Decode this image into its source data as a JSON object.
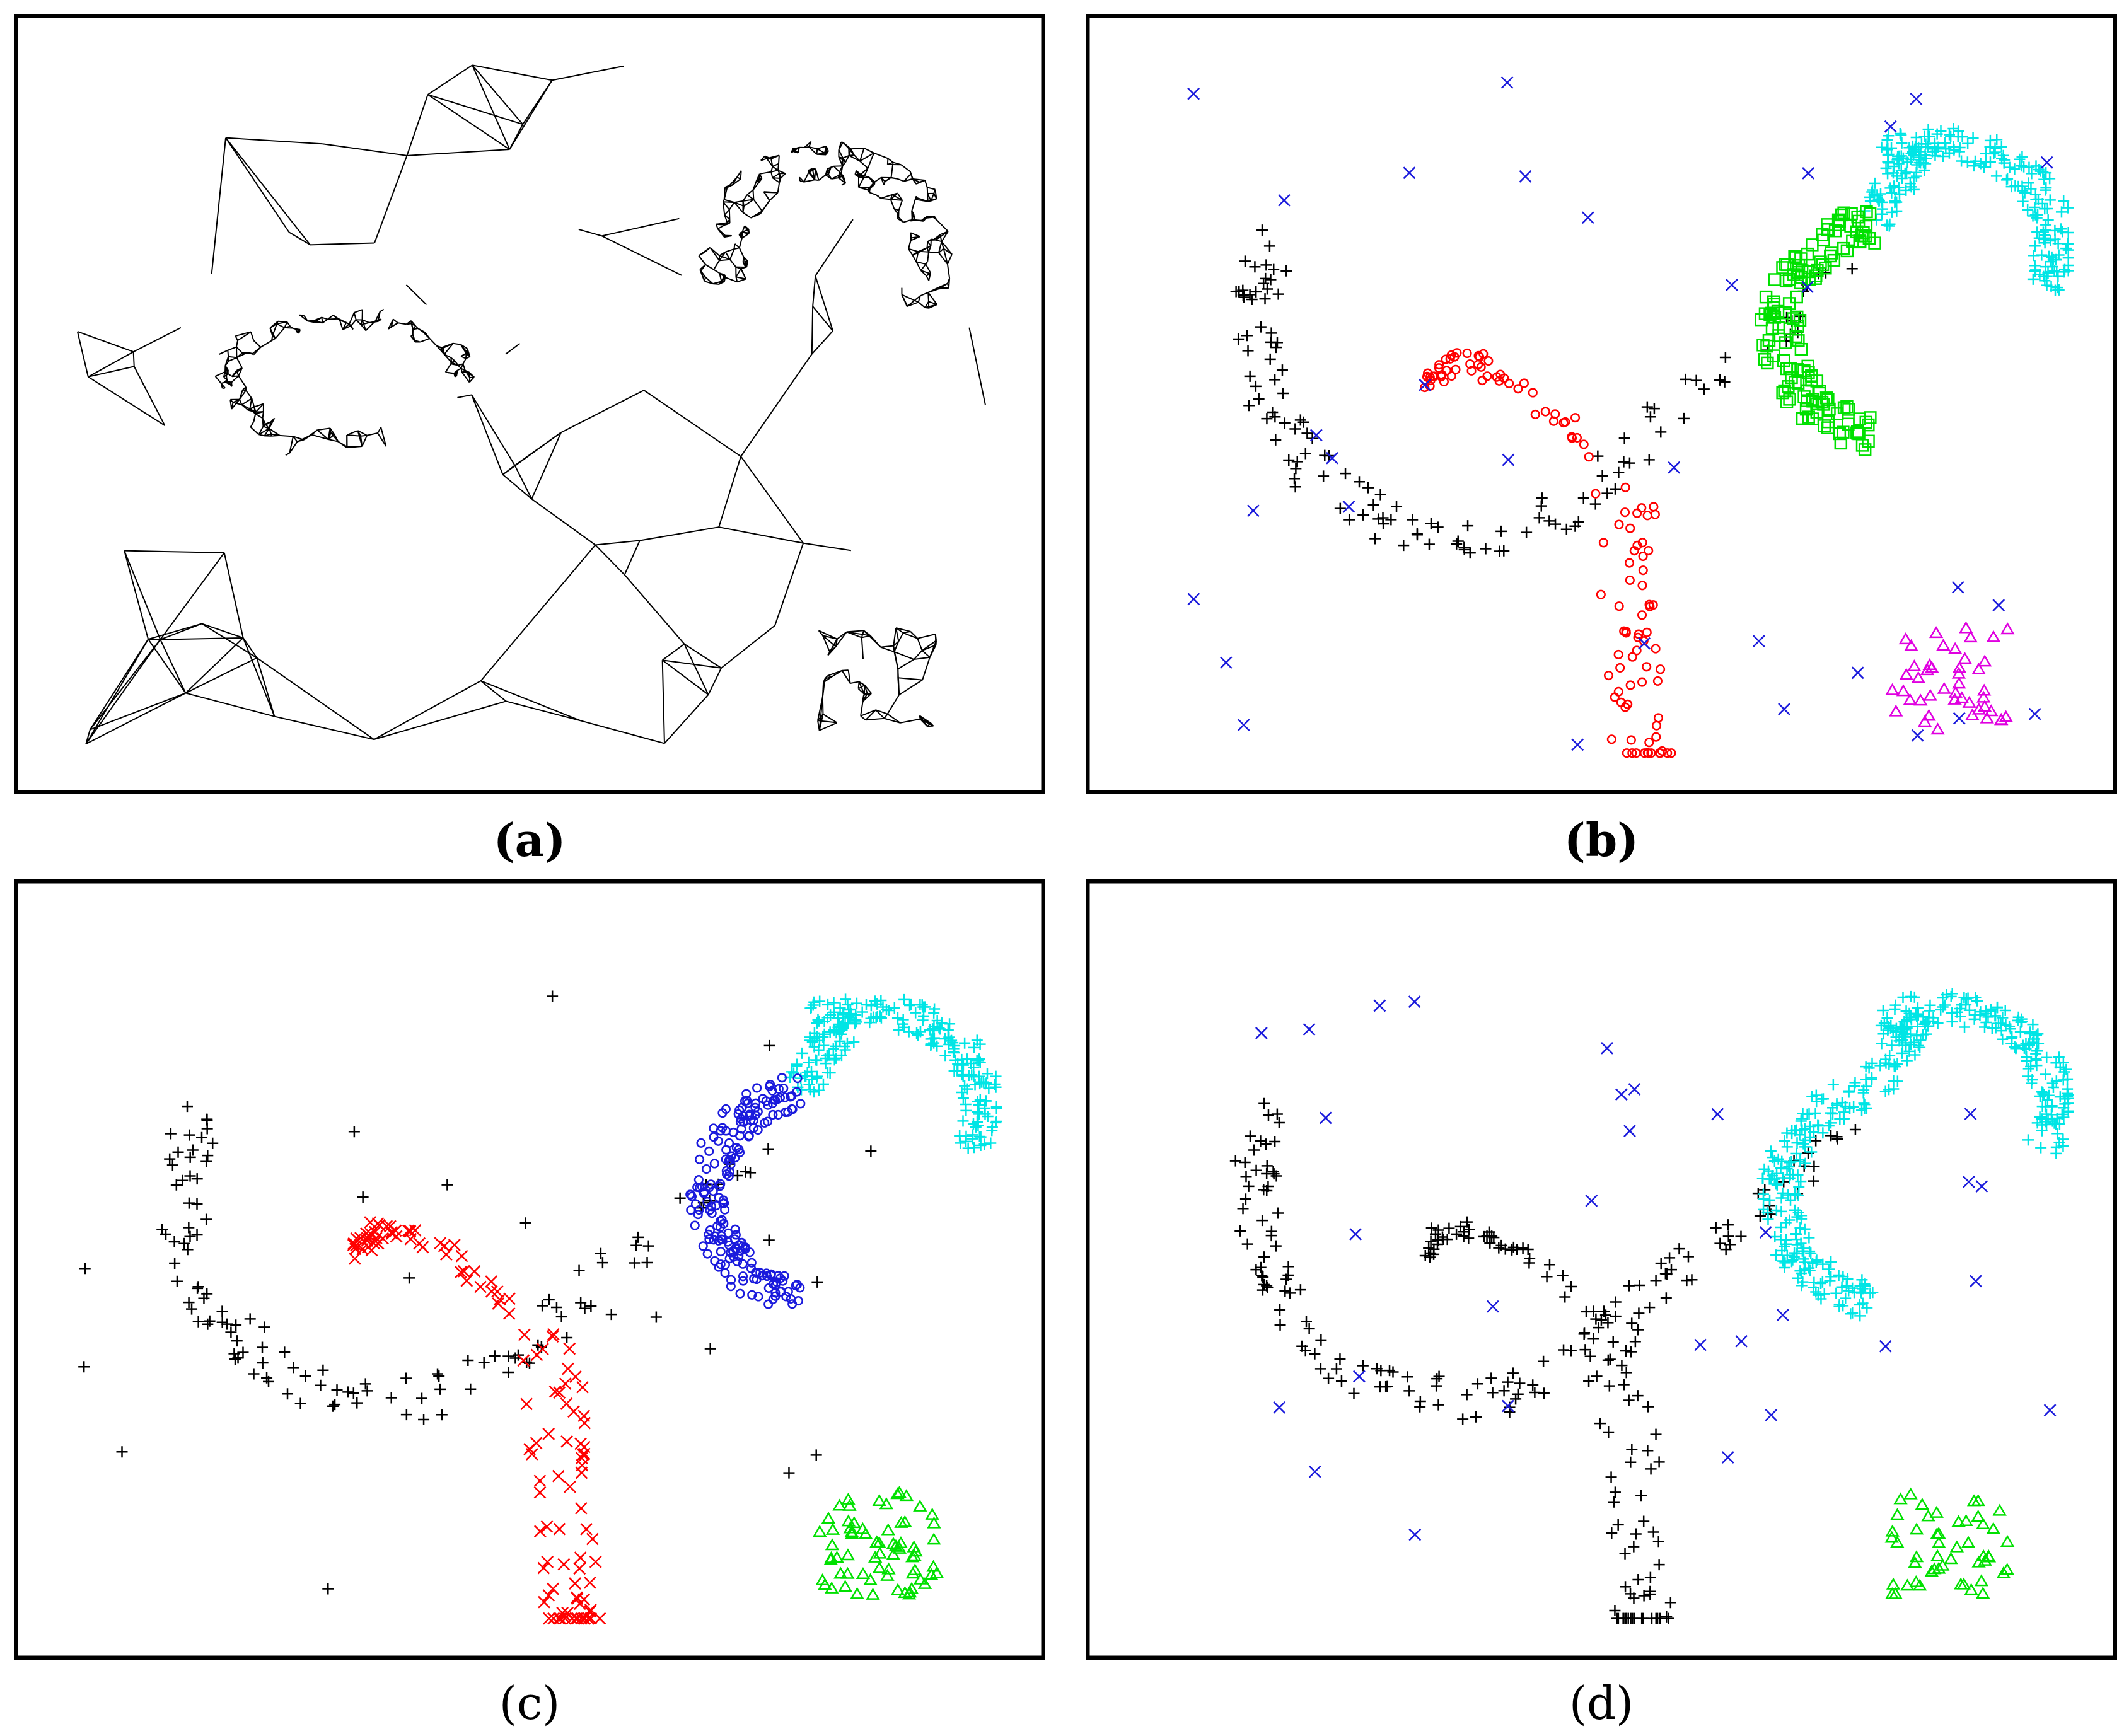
{
  "captions": {
    "a": "(a)",
    "b": "(b)",
    "c": "(c)",
    "d": "(d)"
  },
  "colors": {
    "black": "#000000",
    "red": "#ff0000",
    "green": "#00e000",
    "cyan": "#00e5e5",
    "blue": "#1a1adc",
    "magenta": "#e000e0"
  },
  "chart_data": [
    {
      "type": "scatter",
      "panel": "a",
      "description_mode": "triangulation",
      "seed": 11,
      "clusters": [
        {
          "name": "",
          "color": "black",
          "marker": "plus",
          "kind": "spiral",
          "cx": 0.35,
          "cy": 0.42,
          "count": 180
        },
        {
          "name": "",
          "color": "black",
          "marker": "plus",
          "kind": "crescent",
          "cx": 0.82,
          "cy": 0.29,
          "count": 260
        },
        {
          "name": "",
          "color": "black",
          "marker": "plus",
          "kind": "blob",
          "cx": 0.87,
          "cy": 0.88,
          "count": 60
        },
        {
          "name": "",
          "color": "black",
          "marker": "plus",
          "kind": "noise",
          "count": 80
        }
      ]
    },
    {
      "type": "scatter",
      "panel": "b",
      "seed": 23,
      "clusters": [
        {
          "color": "black",
          "marker": "plus",
          "kind": "spiral-outer",
          "count": 130
        },
        {
          "color": "red",
          "marker": "circle",
          "kind": "spiral-inner",
          "count": 120
        },
        {
          "color": "cyan",
          "marker": "plus",
          "kind": "crescent-top",
          "count": 240
        },
        {
          "color": "green",
          "marker": "square",
          "kind": "crescent-low",
          "count": 150
        },
        {
          "color": "magenta",
          "marker": "triangle",
          "kind": "blob",
          "count": 45
        },
        {
          "color": "blue",
          "marker": "x",
          "kind": "noise",
          "count": 32
        }
      ]
    },
    {
      "type": "scatter",
      "panel": "c",
      "seed": 37,
      "clusters": [
        {
          "color": "black",
          "marker": "plus",
          "kind": "spiral-outer",
          "count": 120
        },
        {
          "color": "red",
          "marker": "x",
          "kind": "spiral-inner",
          "count": 130
        },
        {
          "color": "cyan",
          "marker": "plus",
          "kind": "crescent-top",
          "count": 240
        },
        {
          "color": "blue",
          "marker": "circle",
          "kind": "crescent-low",
          "count": 200
        },
        {
          "color": "green",
          "marker": "triangle",
          "kind": "blob",
          "count": 70
        },
        {
          "color": "black",
          "marker": "plus",
          "kind": "noise",
          "count": 20
        }
      ]
    },
    {
      "type": "scatter",
      "panel": "d",
      "seed": 53,
      "clusters": [
        {
          "color": "black",
          "marker": "plus",
          "kind": "spiral-outer",
          "count": 150
        },
        {
          "color": "black",
          "marker": "plus",
          "kind": "spiral-inner",
          "count": 110
        },
        {
          "color": "cyan",
          "marker": "plus",
          "kind": "crescent-top",
          "count": 240
        },
        {
          "color": "cyan",
          "marker": "plus",
          "kind": "crescent-low",
          "count": 200
        },
        {
          "color": "green",
          "marker": "triangle",
          "kind": "blob",
          "count": 50
        },
        {
          "color": "blue",
          "marker": "x",
          "kind": "noise",
          "count": 30
        }
      ]
    }
  ]
}
